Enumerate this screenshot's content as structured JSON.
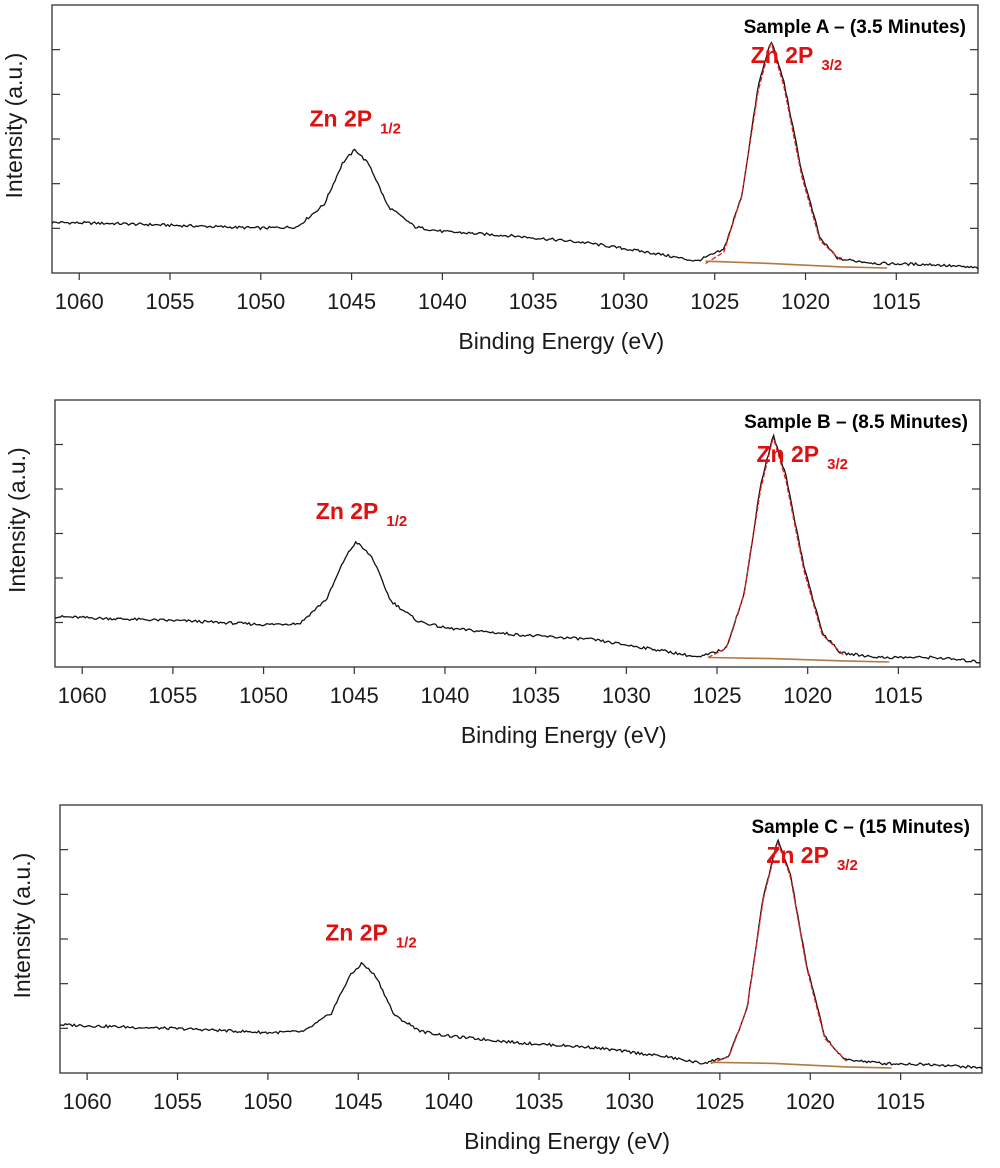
{
  "colors": {
    "spectrum": "#111111",
    "fit": "#e02020",
    "background_line": "#b07a45",
    "annotation": "#dd1111",
    "axis": "#333333"
  },
  "chart_data": [
    {
      "type": "line",
      "title": "Sample A – (3.5 Minutes)",
      "xlabel": "Binding Energy (eV)",
      "ylabel": "Intensity (a.u.)",
      "xlim": [
        1061.5,
        1010.5
      ],
      "x_reversed": true,
      "xticks": [
        1060,
        1055,
        1050,
        1045,
        1040,
        1035,
        1030,
        1025,
        1020,
        1015
      ],
      "ylim": [
        0,
        1.0
      ],
      "yticks_labeled": false,
      "grid": false,
      "series": [
        {
          "role": "spectrum",
          "values": [
            [
              1061.5,
              0.2
            ],
            [
              1058,
              0.195
            ],
            [
              1054,
              0.185
            ],
            [
              1050,
              0.175
            ],
            [
              1048,
              0.18
            ],
            [
              1046.5,
              0.28
            ],
            [
              1045.5,
              0.46
            ],
            [
              1044.8,
              0.52
            ],
            [
              1044,
              0.45
            ],
            [
              1043,
              0.27
            ],
            [
              1041.5,
              0.18
            ],
            [
              1040,
              0.16
            ],
            [
              1036,
              0.14
            ],
            [
              1032,
              0.11
            ],
            [
              1028,
              0.06
            ],
            [
              1026,
              0.03
            ],
            [
              1024.5,
              0.08
            ],
            [
              1023.5,
              0.32
            ],
            [
              1022.6,
              0.8
            ],
            [
              1021.9,
              1.0
            ],
            [
              1021.2,
              0.82
            ],
            [
              1020.2,
              0.42
            ],
            [
              1019.2,
              0.13
            ],
            [
              1018.2,
              0.04
            ],
            [
              1016,
              0.02
            ],
            [
              1013,
              0.015
            ],
            [
              1010.5,
              0.0
            ]
          ]
        },
        {
          "role": "fit",
          "values": [
            [
              1025.5,
              0.02
            ],
            [
              1024.5,
              0.07
            ],
            [
              1023.5,
              0.32
            ],
            [
              1022.6,
              0.78
            ],
            [
              1021.9,
              0.99
            ],
            [
              1021.2,
              0.8
            ],
            [
              1020.2,
              0.4
            ],
            [
              1019.2,
              0.12
            ],
            [
              1018,
              0.03
            ]
          ]
        },
        {
          "role": "background",
          "values": [
            [
              1025.5,
              0.03
            ],
            [
              1022,
              0.02
            ],
            [
              1018,
              0.005
            ],
            [
              1015.5,
              0.0
            ]
          ]
        }
      ],
      "annotations": [
        {
          "x": 1044.8,
          "y": 0.62,
          "name": "Zn  2P",
          "sub": "1/2"
        },
        {
          "x": 1020.5,
          "y": 0.9,
          "name": "Zn  2P",
          "sub": "3/2"
        }
      ]
    },
    {
      "type": "line",
      "title": "Sample B – (8.5 Minutes)",
      "xlabel": "Binding Energy (eV)",
      "ylabel": "Intensity (a.u.)",
      "xlim": [
        1061.5,
        1010.5
      ],
      "x_reversed": true,
      "xticks": [
        1060,
        1055,
        1050,
        1045,
        1040,
        1035,
        1030,
        1025,
        1020,
        1015
      ],
      "ylim": [
        0,
        1.0
      ],
      "yticks_labeled": false,
      "grid": false,
      "series": [
        {
          "role": "spectrum",
          "values": [
            [
              1061.5,
              0.2
            ],
            [
              1058,
              0.19
            ],
            [
              1054,
              0.18
            ],
            [
              1050,
              0.165
            ],
            [
              1048,
              0.17
            ],
            [
              1046.5,
              0.28
            ],
            [
              1045.5,
              0.46
            ],
            [
              1044.9,
              0.53
            ],
            [
              1044,
              0.46
            ],
            [
              1043,
              0.27
            ],
            [
              1041.5,
              0.18
            ],
            [
              1040,
              0.15
            ],
            [
              1036,
              0.12
            ],
            [
              1032,
              0.1
            ],
            [
              1028,
              0.05
            ],
            [
              1026,
              0.02
            ],
            [
              1024.5,
              0.06
            ],
            [
              1023.5,
              0.3
            ],
            [
              1022.6,
              0.78
            ],
            [
              1021.9,
              1.0
            ],
            [
              1021.2,
              0.82
            ],
            [
              1020.2,
              0.42
            ],
            [
              1019.2,
              0.13
            ],
            [
              1018.2,
              0.04
            ],
            [
              1016,
              0.02
            ],
            [
              1013,
              0.02
            ],
            [
              1010.5,
              0.0
            ]
          ]
        },
        {
          "role": "fit",
          "values": [
            [
              1025.5,
              0.02
            ],
            [
              1024.5,
              0.06
            ],
            [
              1023.5,
              0.3
            ],
            [
              1022.6,
              0.76
            ],
            [
              1021.9,
              0.99
            ],
            [
              1021.2,
              0.8
            ],
            [
              1020.2,
              0.4
            ],
            [
              1019.2,
              0.12
            ],
            [
              1018,
              0.03
            ]
          ]
        },
        {
          "role": "background",
          "values": [
            [
              1025.5,
              0.02
            ],
            [
              1022,
              0.015
            ],
            [
              1018,
              0.005
            ],
            [
              1015.5,
              0.0
            ]
          ]
        }
      ],
      "annotations": [
        {
          "x": 1044.6,
          "y": 0.63,
          "name": "Zn  2P",
          "sub": "1/2"
        },
        {
          "x": 1020.3,
          "y": 0.88,
          "name": "Zn  2P",
          "sub": "3/2"
        }
      ]
    },
    {
      "type": "line",
      "title": "Sample C – (15 Minutes)",
      "xlabel": "Binding Energy (eV)",
      "ylabel": "Intensity (a.u.)",
      "xlim": [
        1061.5,
        1010.5
      ],
      "x_reversed": true,
      "xticks": [
        1060,
        1055,
        1050,
        1045,
        1040,
        1035,
        1030,
        1025,
        1020,
        1015
      ],
      "ylim": [
        0,
        1.0
      ],
      "yticks_labeled": false,
      "grid": false,
      "series": [
        {
          "role": "spectrum",
          "values": [
            [
              1061.5,
              0.19
            ],
            [
              1058,
              0.18
            ],
            [
              1054,
              0.17
            ],
            [
              1050,
              0.155
            ],
            [
              1048,
              0.16
            ],
            [
              1046.5,
              0.24
            ],
            [
              1045.5,
              0.4
            ],
            [
              1044.8,
              0.46
            ],
            [
              1044,
              0.4
            ],
            [
              1043,
              0.23
            ],
            [
              1041.5,
              0.16
            ],
            [
              1040,
              0.14
            ],
            [
              1036,
              0.11
            ],
            [
              1032,
              0.09
            ],
            [
              1028,
              0.05
            ],
            [
              1026,
              0.02
            ],
            [
              1024.5,
              0.05
            ],
            [
              1023.5,
              0.26
            ],
            [
              1022.6,
              0.75
            ],
            [
              1021.8,
              1.0
            ],
            [
              1021.1,
              0.85
            ],
            [
              1020.2,
              0.45
            ],
            [
              1019.2,
              0.14
            ],
            [
              1018.2,
              0.04
            ],
            [
              1016,
              0.02
            ],
            [
              1013,
              0.015
            ],
            [
              1010.5,
              0.0
            ]
          ]
        },
        {
          "role": "fit",
          "values": [
            [
              1025.5,
              0.02
            ],
            [
              1024.5,
              0.05
            ],
            [
              1023.5,
              0.26
            ],
            [
              1022.6,
              0.74
            ],
            [
              1021.8,
              0.99
            ],
            [
              1021.1,
              0.84
            ],
            [
              1020.2,
              0.44
            ],
            [
              1019.2,
              0.13
            ],
            [
              1018,
              0.03
            ]
          ]
        },
        {
          "role": "background",
          "values": [
            [
              1025.5,
              0.025
            ],
            [
              1022,
              0.02
            ],
            [
              1018,
              0.005
            ],
            [
              1015.5,
              0.0
            ]
          ]
        }
      ],
      "annotations": [
        {
          "x": 1044.3,
          "y": 0.56,
          "name": "Zn  2P",
          "sub": "1/2"
        },
        {
          "x": 1019.9,
          "y": 0.9,
          "name": "Zn  2P",
          "sub": "3/2"
        }
      ]
    }
  ]
}
